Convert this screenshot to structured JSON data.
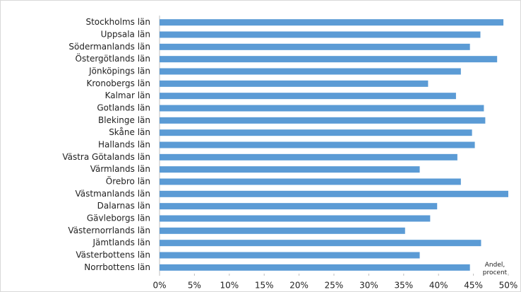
{
  "chart_data": {
    "type": "barh",
    "x_label": "Andel, procent",
    "color": "#5b9bd5",
    "categories": [
      "Stockholms län",
      "Uppsala län",
      "Södermanlands län",
      "Östergötlands län",
      "Jönköpings län",
      "Kronobergs län",
      "Kalmar län",
      "Gotlands län",
      "Blekinge län",
      "Skåne län",
      "Hallands län",
      "Västra Götalands län",
      "Värmlands län",
      "Örebro län",
      "Västmanlands län",
      "Dalarnas län",
      "Gävleborgs län",
      "Västernorrlands län",
      "Jämtlands län",
      "Västerbottens län",
      "Norrbottens län"
    ],
    "values": [
      49.3,
      46.0,
      44.5,
      48.4,
      43.2,
      38.5,
      42.5,
      46.5,
      46.7,
      44.8,
      45.2,
      42.7,
      37.3,
      43.2,
      50.0,
      39.8,
      38.8,
      35.2,
      46.1,
      37.3,
      44.5
    ],
    "xlim": [
      0,
      50
    ],
    "xticks": [
      {
        "value": 0,
        "label": "0%"
      },
      {
        "value": 5,
        "label": "5%"
      },
      {
        "value": 10,
        "label": "10%"
      },
      {
        "value": 15,
        "label": "15%"
      },
      {
        "value": 20,
        "label": "20%"
      },
      {
        "value": 25,
        "label": "25%"
      },
      {
        "value": 30,
        "label": "30%"
      },
      {
        "value": 35,
        "label": "35%"
      },
      {
        "value": 40,
        "label": "40%"
      },
      {
        "value": 45,
        "label": "45%"
      },
      {
        "value": 50,
        "label": "50%"
      }
    ]
  }
}
